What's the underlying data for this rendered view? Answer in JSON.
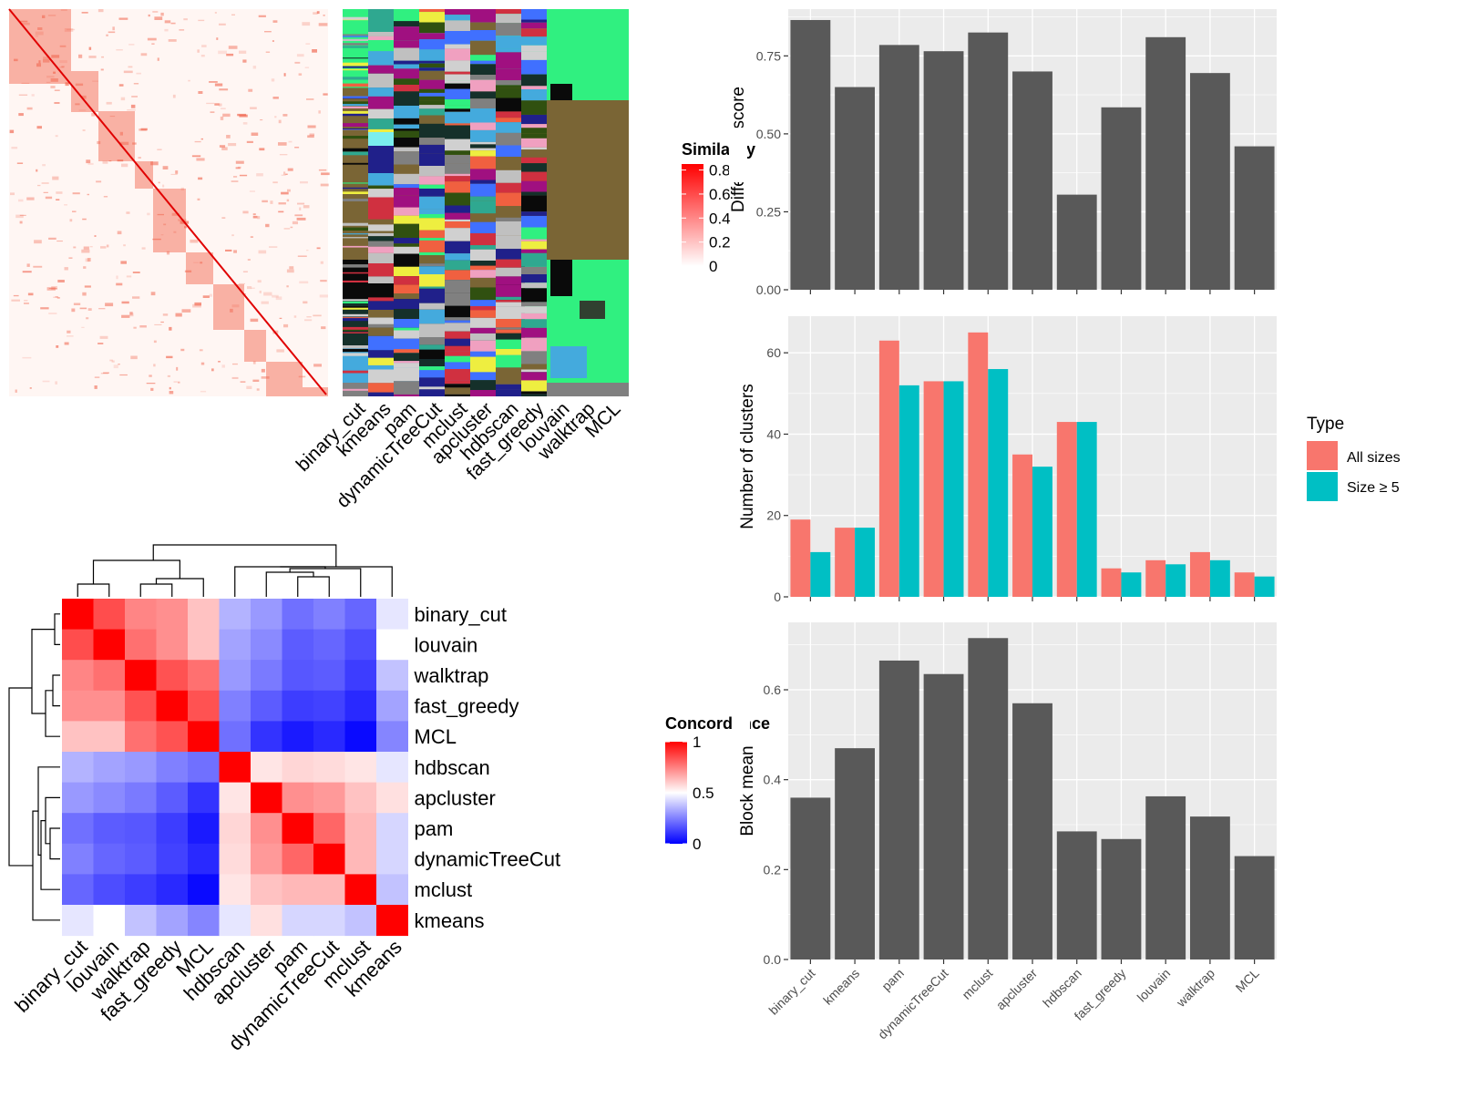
{
  "colors": {
    "panel_bg": "#EBEBEB",
    "grid": "#FFFFFF",
    "bar": "#595959",
    "all_sizes": "#F8766D",
    "size_ge5": "#00BFC4",
    "heat_red": "#FF0000",
    "heat_white": "#FFFFFF",
    "heat_blue": "#0000FF"
  },
  "similarity_heatmap": {
    "legend_title": "Similarity",
    "legend_ticks": [
      "0.8",
      "0.6",
      "0.4",
      "0.2",
      "0"
    ],
    "legend_values": [
      0.8,
      0.6,
      0.4,
      0.2,
      0
    ]
  },
  "partition_panel": {
    "methods": [
      "binary_cut",
      "kmeans",
      "pam",
      "dynamicTreeCut",
      "mclust",
      "apcluster",
      "hdbscan",
      "fast_greedy",
      "louvain",
      "walktrap",
      "MCL"
    ]
  },
  "concordance_heatmap": {
    "legend_title": "Concordance",
    "legend_ticks": [
      "1",
      "0.5",
      "0"
    ],
    "legend_values": [
      1,
      0.5,
      0
    ],
    "methods": [
      "binary_cut",
      "louvain",
      "walktrap",
      "fast_greedy",
      "MCL",
      "hdbscan",
      "apcluster",
      "pam",
      "dynamicTreeCut",
      "mclust",
      "kmeans"
    ],
    "matrix": [
      [
        1.0,
        0.85,
        0.74,
        0.72,
        0.62,
        0.35,
        0.3,
        0.22,
        0.25,
        0.2,
        0.45
      ],
      [
        0.85,
        1.0,
        0.78,
        0.72,
        0.62,
        0.32,
        0.27,
        0.18,
        0.2,
        0.15,
        0.5
      ],
      [
        0.74,
        0.78,
        1.0,
        0.84,
        0.78,
        0.3,
        0.24,
        0.17,
        0.18,
        0.12,
        0.38
      ],
      [
        0.72,
        0.72,
        0.84,
        1.0,
        0.84,
        0.25,
        0.18,
        0.12,
        0.13,
        0.08,
        0.32
      ],
      [
        0.62,
        0.62,
        0.78,
        0.84,
        1.0,
        0.22,
        0.1,
        0.05,
        0.08,
        0.02,
        0.26
      ],
      [
        0.35,
        0.32,
        0.3,
        0.25,
        0.22,
        1.0,
        0.55,
        0.58,
        0.57,
        0.55,
        0.45
      ],
      [
        0.3,
        0.27,
        0.24,
        0.18,
        0.1,
        0.55,
        1.0,
        0.72,
        0.7,
        0.62,
        0.56
      ],
      [
        0.22,
        0.18,
        0.17,
        0.12,
        0.05,
        0.58,
        0.72,
        1.0,
        0.8,
        0.64,
        0.42
      ],
      [
        0.25,
        0.2,
        0.18,
        0.13,
        0.08,
        0.57,
        0.7,
        0.8,
        1.0,
        0.64,
        0.42
      ],
      [
        0.2,
        0.15,
        0.12,
        0.08,
        0.02,
        0.55,
        0.62,
        0.64,
        0.64,
        1.0,
        0.38
      ],
      [
        0.45,
        0.5,
        0.38,
        0.32,
        0.26,
        0.45,
        0.56,
        0.42,
        0.42,
        0.38,
        1.0
      ]
    ]
  },
  "chart_data": [
    {
      "type": "bar",
      "categories": [
        "binary_cut",
        "kmeans",
        "pam",
        "dynamicTreeCut",
        "mclust",
        "apcluster",
        "hdbscan",
        "fast_greedy",
        "louvain",
        "walktrap",
        "MCL"
      ],
      "values": [
        0.865,
        0.65,
        0.785,
        0.765,
        0.825,
        0.7,
        0.305,
        0.585,
        0.81,
        0.695,
        0.46
      ],
      "xlabel": "",
      "ylabel": "Difference score",
      "ylim": [
        0,
        0.9
      ],
      "yticks": [
        0,
        0.25,
        0.5,
        0.75
      ],
      "ytick_labels": [
        "0.00",
        "0.25",
        "0.50",
        "0.75"
      ],
      "grid": true,
      "show_x_labels": false
    },
    {
      "type": "bar",
      "categories": [
        "binary_cut",
        "kmeans",
        "pam",
        "dynamicTreeCut",
        "mclust",
        "apcluster",
        "hdbscan",
        "fast_greedy",
        "louvain",
        "walktrap",
        "MCL"
      ],
      "series": [
        {
          "name": "All sizes",
          "values": [
            19,
            17,
            63,
            53,
            65,
            35,
            43,
            7,
            9,
            11,
            6
          ]
        },
        {
          "name": "Size ≥ 5",
          "values": [
            11,
            17,
            52,
            53,
            56,
            32,
            43,
            6,
            8,
            9,
            5
          ]
        }
      ],
      "xlabel": "",
      "ylabel": "Number of clusters",
      "ylim": [
        0,
        69
      ],
      "yticks": [
        0,
        20,
        40,
        60
      ],
      "ytick_labels": [
        "0",
        "20",
        "40",
        "60"
      ],
      "grid": true,
      "legend_title": "Type",
      "legend_position": "right",
      "show_x_labels": false
    },
    {
      "type": "bar",
      "categories": [
        "binary_cut",
        "kmeans",
        "pam",
        "dynamicTreeCut",
        "mclust",
        "apcluster",
        "hdbscan",
        "fast_greedy",
        "louvain",
        "walktrap",
        "MCL"
      ],
      "values": [
        0.36,
        0.47,
        0.665,
        0.635,
        0.715,
        0.57,
        0.285,
        0.268,
        0.363,
        0.318,
        0.23
      ],
      "xlabel": "",
      "ylabel": "Block mean",
      "ylim": [
        0,
        0.75
      ],
      "yticks": [
        0,
        0.2,
        0.4,
        0.6
      ],
      "ytick_labels": [
        "0.0",
        "0.2",
        "0.4",
        "0.6"
      ],
      "grid": true,
      "show_x_labels": true
    }
  ]
}
